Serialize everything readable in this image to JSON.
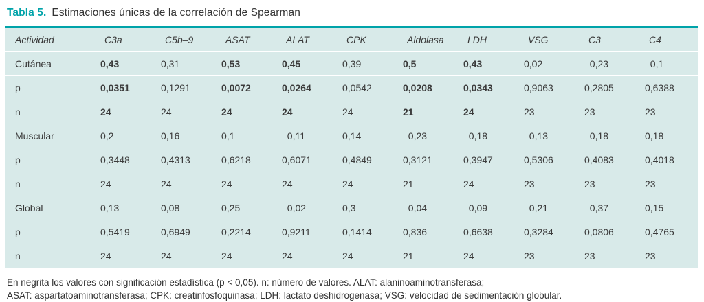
{
  "title": {
    "label": "Tabla 5.",
    "text": "Estimaciones únicas de la correlación de Spearman"
  },
  "colors": {
    "accent": "#00a3a9",
    "table_bg": "#d8eae9"
  },
  "table": {
    "headers": [
      "Actividad",
      "C3a",
      "C5b–9",
      "ASAT",
      "ALAT",
      "CPK",
      "Aldolasa",
      "LDH",
      "VSG",
      "C3",
      "C4"
    ],
    "rows": [
      {
        "label": "Cutánea",
        "values": [
          "0,43",
          "0,31",
          "0,53",
          "0,45",
          "0,39",
          "0,5",
          "0,43",
          "0,02",
          "–0,23",
          "–0,1"
        ],
        "bold": [
          true,
          false,
          true,
          true,
          false,
          true,
          true,
          false,
          false,
          false
        ]
      },
      {
        "label": "p",
        "values": [
          "0,0351",
          "0,1291",
          "0,0072",
          "0,0264",
          "0,0542",
          "0,0208",
          "0,0343",
          "0,9063",
          "0,2805",
          "0,6388"
        ],
        "bold": [
          true,
          false,
          true,
          true,
          false,
          true,
          true,
          false,
          false,
          false
        ]
      },
      {
        "label": "n",
        "values": [
          "24",
          "24",
          "24",
          "24",
          "24",
          "21",
          "24",
          "23",
          "23",
          "23"
        ],
        "bold": [
          true,
          false,
          true,
          true,
          false,
          true,
          true,
          false,
          false,
          false
        ]
      },
      {
        "label": "Muscular",
        "values": [
          "0,2",
          "0,16",
          "0,1",
          "–0,11",
          "0,14",
          "–0,23",
          "–0,18",
          "–0,13",
          "–0,18",
          "0,18"
        ],
        "bold": [
          false,
          false,
          false,
          false,
          false,
          false,
          false,
          false,
          false,
          false
        ]
      },
      {
        "label": "p",
        "values": [
          "0,3448",
          "0,4313",
          "0,6218",
          "0,6071",
          "0,4849",
          "0,3121",
          "0,3947",
          "0,5306",
          "0,4083",
          "0,4018"
        ],
        "bold": [
          false,
          false,
          false,
          false,
          false,
          false,
          false,
          false,
          false,
          false
        ]
      },
      {
        "label": "n",
        "values": [
          "24",
          "24",
          "24",
          "24",
          "24",
          "21",
          "24",
          "23",
          "23",
          "23"
        ],
        "bold": [
          false,
          false,
          false,
          false,
          false,
          false,
          false,
          false,
          false,
          false
        ]
      },
      {
        "label": "Global",
        "values": [
          "0,13",
          "0,08",
          "0,25",
          "–0,02",
          "0,3",
          "–0,04",
          "–0,09",
          "–0,21",
          "–0,37",
          "0,15"
        ],
        "bold": [
          false,
          false,
          false,
          false,
          false,
          false,
          false,
          false,
          false,
          false
        ]
      },
      {
        "label": "p",
        "values": [
          "0,5419",
          "0,6949",
          "0,2214",
          "0,9211",
          "0,1414",
          "0,836",
          "0,6638",
          "0,3284",
          "0,0806",
          "0,4765"
        ],
        "bold": [
          false,
          false,
          false,
          false,
          false,
          false,
          false,
          false,
          false,
          false
        ]
      },
      {
        "label": "n",
        "values": [
          "24",
          "24",
          "24",
          "24",
          "24",
          "21",
          "24",
          "23",
          "23",
          "23"
        ],
        "bold": [
          false,
          false,
          false,
          false,
          false,
          false,
          false,
          false,
          false,
          false
        ]
      }
    ]
  },
  "footnotes": [
    "En negrita los valores con significación estadística (p < 0,05). n: número de valores. ALAT: alaninoaminotransferasa;",
    "ASAT: aspartatoaminotransferasa; CPK: creatinfosfoquinasa; LDH: lactato deshidrogenasa; VSG: velocidad de sedimentación globular."
  ]
}
